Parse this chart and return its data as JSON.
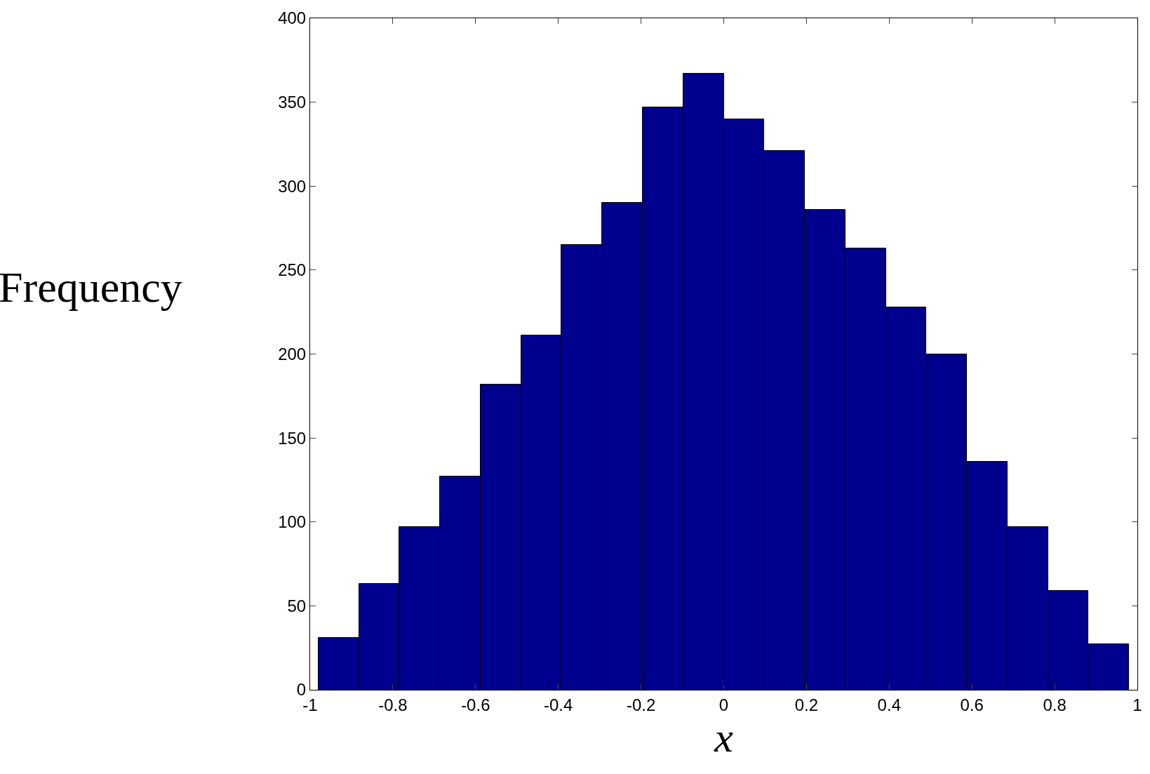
{
  "chart_data": {
    "type": "histogram",
    "xlabel": "x",
    "ylabel": "Frequency",
    "color": "#00008f",
    "bins": [
      -0.98,
      -0.882,
      -0.784,
      -0.686,
      -0.588,
      -0.49,
      -0.392,
      -0.294,
      -0.196,
      -0.098,
      0,
      0.098,
      0.196,
      0.294,
      0.392,
      0.49,
      0.588,
      0.686,
      0.784,
      0.882,
      0.98
    ],
    "values": [
      31,
      63,
      97,
      127,
      182,
      211,
      265,
      290,
      347,
      367,
      340,
      321,
      286,
      263,
      228,
      200,
      136,
      97,
      59,
      27
    ],
    "xlim": [
      -1,
      1
    ],
    "xticks": [
      -1,
      -0.8,
      -0.6,
      -0.4,
      -0.2,
      0,
      0.2,
      0.4,
      0.6,
      0.8,
      1
    ],
    "ylim": [
      0,
      400
    ],
    "yticks": [
      0,
      50,
      100,
      150,
      200,
      250,
      300,
      350,
      400
    ]
  }
}
